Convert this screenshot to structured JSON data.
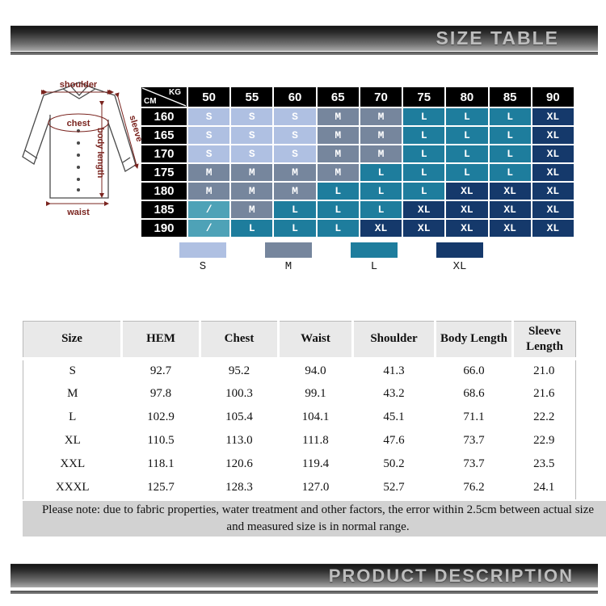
{
  "banners": {
    "size_table": "SIZE TABLE",
    "product_description": "PRODUCT DESCRIPTION"
  },
  "diagram": {
    "labels": {
      "shoulder": "shoulder",
      "chest": "chest",
      "sleeve": "sleeve",
      "body_length": "body length",
      "waist": "waist"
    },
    "label_color": "#7a241f",
    "outline_color": "#4a4a4a"
  },
  "size_chart": {
    "corner": {
      "top_right": "KG",
      "bottom_left": "CM"
    },
    "weight_columns": [
      "50",
      "55",
      "60",
      "65",
      "70",
      "75",
      "80",
      "85",
      "90"
    ],
    "height_rows": [
      "160",
      "165",
      "170",
      "175",
      "180",
      "185",
      "190"
    ],
    "cells": [
      [
        "S",
        "S",
        "S",
        "M",
        "M",
        "L",
        "L",
        "L",
        "XL"
      ],
      [
        "S",
        "S",
        "S",
        "M",
        "M",
        "L",
        "L",
        "L",
        "XL"
      ],
      [
        "S",
        "S",
        "S",
        "M",
        "M",
        "L",
        "L",
        "L",
        "XL"
      ],
      [
        "M",
        "M",
        "M",
        "M",
        "L",
        "L",
        "L",
        "L",
        "XL"
      ],
      [
        "M",
        "M",
        "M",
        "L",
        "L",
        "L",
        "XL",
        "XL",
        "XL"
      ],
      [
        "/",
        "M",
        "L",
        "L",
        "L",
        "XL",
        "XL",
        "XL",
        "XL"
      ],
      [
        "/",
        "L",
        "L",
        "L",
        "XL",
        "XL",
        "XL",
        "XL",
        "XL"
      ]
    ],
    "colors": {
      "S": "#afc0e2",
      "M": "#76869d",
      "L": "#1e7d9d",
      "XL": "#15396b",
      "/": "#4ea2b7",
      "header_bg": "#000000",
      "cell_text": "#ffffff"
    }
  },
  "legend": [
    {
      "label": "S",
      "color": "#afc0e2"
    },
    {
      "label": "M",
      "color": "#76869d"
    },
    {
      "label": "L",
      "color": "#1e7d9d"
    },
    {
      "label": "XL",
      "color": "#15396b"
    }
  ],
  "measurement_table": {
    "headers": [
      "Size",
      "HEM",
      "Chest",
      "Waist",
      "Shoulder",
      "Body Length",
      "Sleeve Length"
    ],
    "rows": [
      [
        "S",
        "92.7",
        "95.2",
        "94.0",
        "41.3",
        "66.0",
        "21.0"
      ],
      [
        "M",
        "97.8",
        "100.3",
        "99.1",
        "43.2",
        "68.6",
        "21.6"
      ],
      [
        "L",
        "102.9",
        "105.4",
        "104.1",
        "45.1",
        "71.1",
        "22.2"
      ],
      [
        "XL",
        "110.5",
        "113.0",
        "111.8",
        "47.6",
        "73.7",
        "22.9"
      ],
      [
        "XXL",
        "118.1",
        "120.6",
        "119.4",
        "50.2",
        "73.7",
        "23.5"
      ],
      [
        "XXXL",
        "125.7",
        "128.3",
        "127.0",
        "52.7",
        "76.2",
        "24.1"
      ]
    ]
  },
  "note": {
    "line1": "Please note: due to fabric properties, water treatment and other factors, the error within 2.5cm between actual size",
    "line2": "and measured size is in normal range."
  }
}
